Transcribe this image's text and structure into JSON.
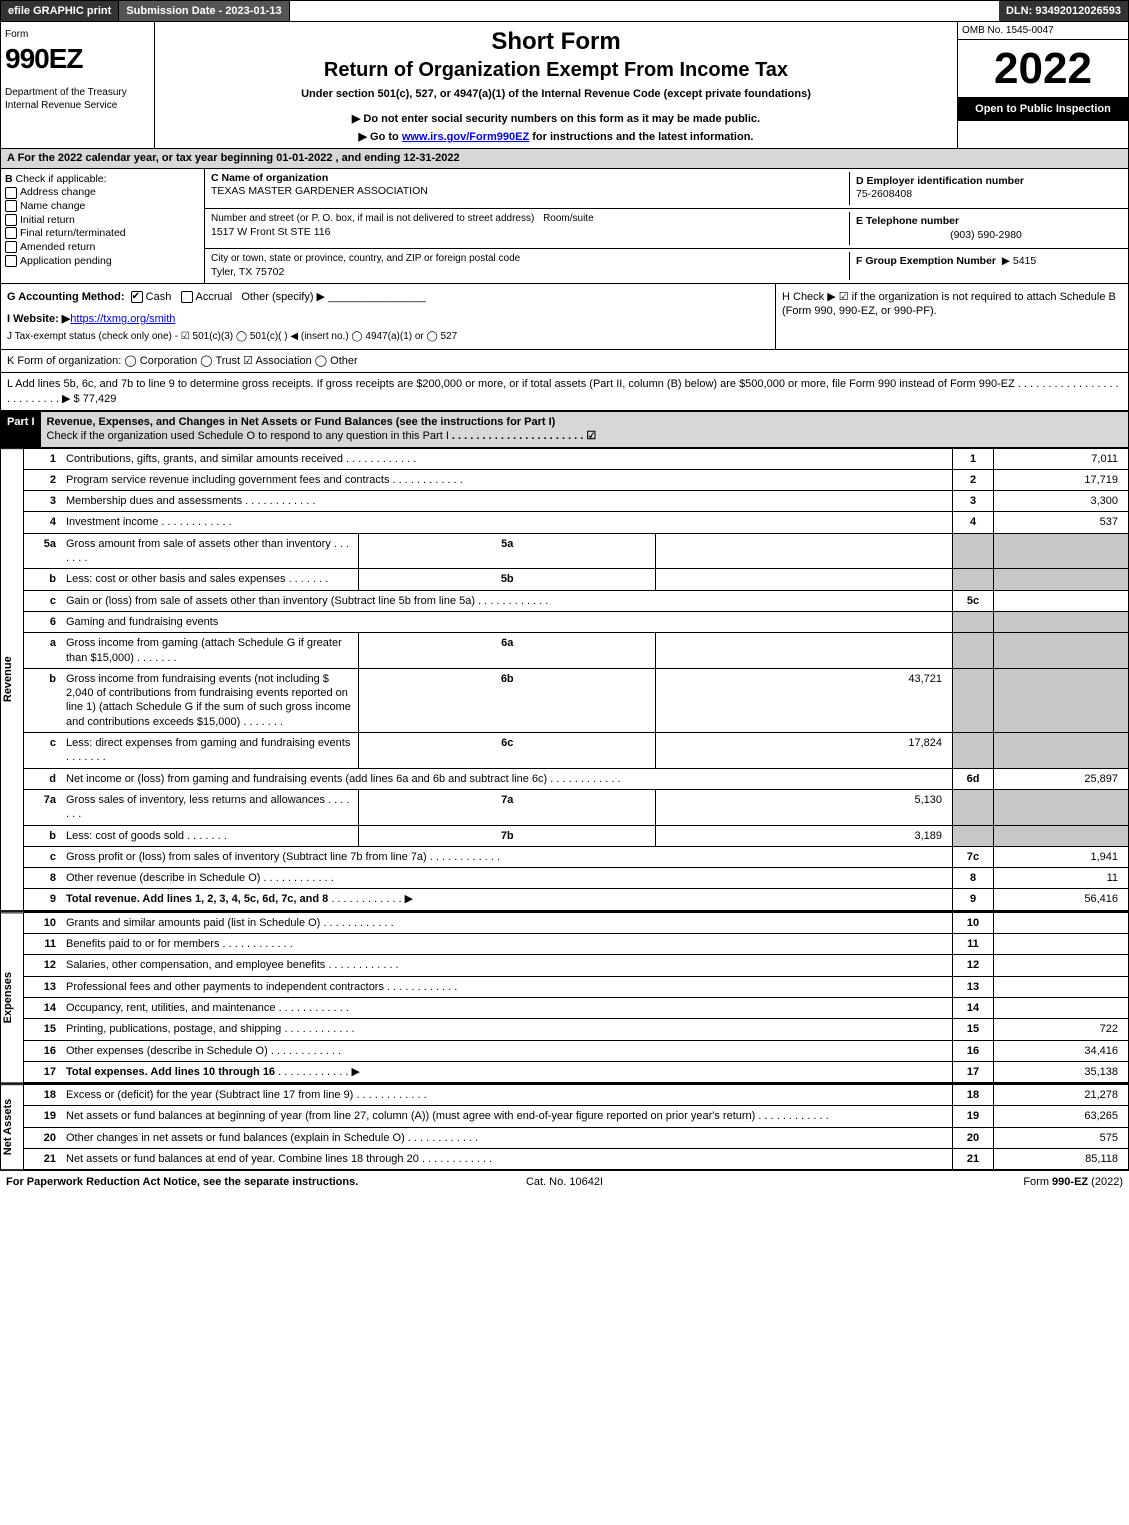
{
  "top": {
    "efile": "efile GRAPHIC print",
    "sub_lbl": "Submission Date - 2023-01-13",
    "dln": "DLN: 93492012026593"
  },
  "header": {
    "form_word": "Form",
    "form_no": "990EZ",
    "dept": "Department of the Treasury\nInternal Revenue Service",
    "title1": "Short Form",
    "title2": "Return of Organization Exempt From Income Tax",
    "sub": "Under section 501(c), 527, or 4947(a)(1) of the Internal Revenue Code (except private foundations)",
    "note1": "▶ Do not enter social security numbers on this form as it may be made public.",
    "note2": "▶ Go to www.irs.gov/Form990EZ for instructions and the latest information.",
    "omb": "OMB No. 1545-0047",
    "year": "2022",
    "badge": "Open to Public Inspection"
  },
  "A": {
    "text": "A  For the 2022 calendar year, or tax year beginning 01-01-2022 , and ending 12-31-2022"
  },
  "B": {
    "hdr": "B",
    "label": "Check if applicable:",
    "opts": [
      "Address change",
      "Name change",
      "Initial return",
      "Final return/terminated",
      "Amended return",
      "Application pending"
    ]
  },
  "C": {
    "name_lbl": "C Name of organization",
    "name": "TEXAS MASTER GARDENER ASSOCIATION",
    "street_lbl": "Number and street (or P. O. box, if mail is not delivered to street address)",
    "room_lbl": "Room/suite",
    "street": "1517 W Front St STE 116",
    "city_lbl": "City or town, state or province, country, and ZIP or foreign postal code",
    "city": "Tyler, TX  75702"
  },
  "D": {
    "lbl": "D Employer identification number",
    "val": "75-2608408"
  },
  "E": {
    "lbl": "E Telephone number",
    "val": "(903) 590-2980"
  },
  "F": {
    "lbl": "F Group Exemption Number",
    "val": "▶ 5415"
  },
  "G": {
    "lbl": "G Accounting Method:",
    "cash": "Cash",
    "accr": "Accrual",
    "other": "Other (specify) ▶"
  },
  "H": {
    "text": "H   Check ▶ ☑ if the organization is not required to attach Schedule B (Form 990, 990-EZ, or 990-PF)."
  },
  "I": {
    "lbl": "I Website: ▶",
    "url": "https://txmg.org/smith"
  },
  "J": {
    "text": "J Tax-exempt status (check only one) - ☑ 501(c)(3)  ◯ 501(c)(  ) ◀ (insert no.)  ◯ 4947(a)(1) or  ◯ 527"
  },
  "K": {
    "text": "K Form of organization:  ◯ Corporation  ◯ Trust  ☑ Association  ◯ Other"
  },
  "L": {
    "text": "L Add lines 5b, 6c, and 7b to line 9 to determine gross receipts. If gross receipts are $200,000 or more, or if total assets (Part II, column (B) below) are $500,000 or more, file Form 990 instead of Form 990-EZ",
    "amt": "▶ $ 77,429"
  },
  "part1": {
    "tag": "Part I",
    "title": "Revenue, Expenses, and Changes in Net Assets or Fund Balances (see the instructions for Part I)",
    "check": "Check if the organization used Schedule O to respond to any question in this Part I",
    "checked": "☑"
  },
  "rows": [
    {
      "n": "1",
      "d": "Contributions, gifts, grants, and similar amounts received",
      "l": "1",
      "a": "7,011"
    },
    {
      "n": "2",
      "d": "Program service revenue including government fees and contracts",
      "l": "2",
      "a": "17,719"
    },
    {
      "n": "3",
      "d": "Membership dues and assessments",
      "l": "3",
      "a": "3,300"
    },
    {
      "n": "4",
      "d": "Investment income",
      "l": "4",
      "a": "537"
    },
    {
      "n": "5a",
      "d": "Gross amount from sale of assets other than inventory",
      "mid": "5a",
      "ma": ""
    },
    {
      "n": "b",
      "d": "Less: cost or other basis and sales expenses",
      "mid": "5b",
      "ma": ""
    },
    {
      "n": "c",
      "d": "Gain or (loss) from sale of assets other than inventory (Subtract line 5b from line 5a)",
      "l": "5c",
      "a": ""
    },
    {
      "n": "6",
      "d": "Gaming and fundraising events"
    },
    {
      "n": "a",
      "d": "Gross income from gaming (attach Schedule G if greater than $15,000)",
      "mid": "6a",
      "ma": ""
    },
    {
      "n": "b",
      "d": "Gross income from fundraising events (not including $  2,040         of contributions from fundraising events reported on line 1) (attach Schedule G if the sum of such gross income and contributions exceeds $15,000)",
      "mid": "6b",
      "ma": "43,721"
    },
    {
      "n": "c",
      "d": "Less: direct expenses from gaming and fundraising events",
      "mid": "6c",
      "ma": "17,824"
    },
    {
      "n": "d",
      "d": "Net income or (loss) from gaming and fundraising events (add lines 6a and 6b and subtract line 6c)",
      "l": "6d",
      "a": "25,897"
    },
    {
      "n": "7a",
      "d": "Gross sales of inventory, less returns and allowances",
      "mid": "7a",
      "ma": "5,130"
    },
    {
      "n": "b",
      "d": "Less: cost of goods sold",
      "mid": "7b",
      "ma": "3,189"
    },
    {
      "n": "c",
      "d": "Gross profit or (loss) from sales of inventory (Subtract line 7b from line 7a)",
      "l": "7c",
      "a": "1,941"
    },
    {
      "n": "8",
      "d": "Other revenue (describe in Schedule O)",
      "l": "8",
      "a": "11"
    },
    {
      "n": "9",
      "d": "Total revenue. Add lines 1, 2, 3, 4, 5c, 6d, 7c, and 8",
      "l": "9",
      "a": "56,416",
      "b": true,
      "arrow": "▶"
    }
  ],
  "exp": [
    {
      "n": "10",
      "d": "Grants and similar amounts paid (list in Schedule O)",
      "l": "10",
      "a": ""
    },
    {
      "n": "11",
      "d": "Benefits paid to or for members",
      "l": "11",
      "a": ""
    },
    {
      "n": "12",
      "d": "Salaries, other compensation, and employee benefits",
      "l": "12",
      "a": ""
    },
    {
      "n": "13",
      "d": "Professional fees and other payments to independent contractors",
      "l": "13",
      "a": ""
    },
    {
      "n": "14",
      "d": "Occupancy, rent, utilities, and maintenance",
      "l": "14",
      "a": ""
    },
    {
      "n": "15",
      "d": "Printing, publications, postage, and shipping",
      "l": "15",
      "a": "722"
    },
    {
      "n": "16",
      "d": "Other expenses (describe in Schedule O)",
      "l": "16",
      "a": "34,416"
    },
    {
      "n": "17",
      "d": "Total expenses. Add lines 10 through 16",
      "l": "17",
      "a": "35,138",
      "b": true,
      "arrow": "▶"
    }
  ],
  "net": [
    {
      "n": "18",
      "d": "Excess or (deficit) for the year (Subtract line 17 from line 9)",
      "l": "18",
      "a": "21,278"
    },
    {
      "n": "19",
      "d": "Net assets or fund balances at beginning of year (from line 27, column (A)) (must agree with end-of-year figure reported on prior year's return)",
      "l": "19",
      "a": "63,265"
    },
    {
      "n": "20",
      "d": "Other changes in net assets or fund balances (explain in Schedule O)",
      "l": "20",
      "a": "575"
    },
    {
      "n": "21",
      "d": "Net assets or fund balances at end of year. Combine lines 18 through 20",
      "l": "21",
      "a": "85,118"
    }
  ],
  "vlabels": {
    "rev": "Revenue",
    "exp": "Expenses",
    "net": "Net Assets"
  },
  "foot": {
    "left": "For Paperwork Reduction Act Notice, see the separate instructions.",
    "mid": "Cat. No. 10642I",
    "right": "Form 990-EZ (2022)"
  }
}
